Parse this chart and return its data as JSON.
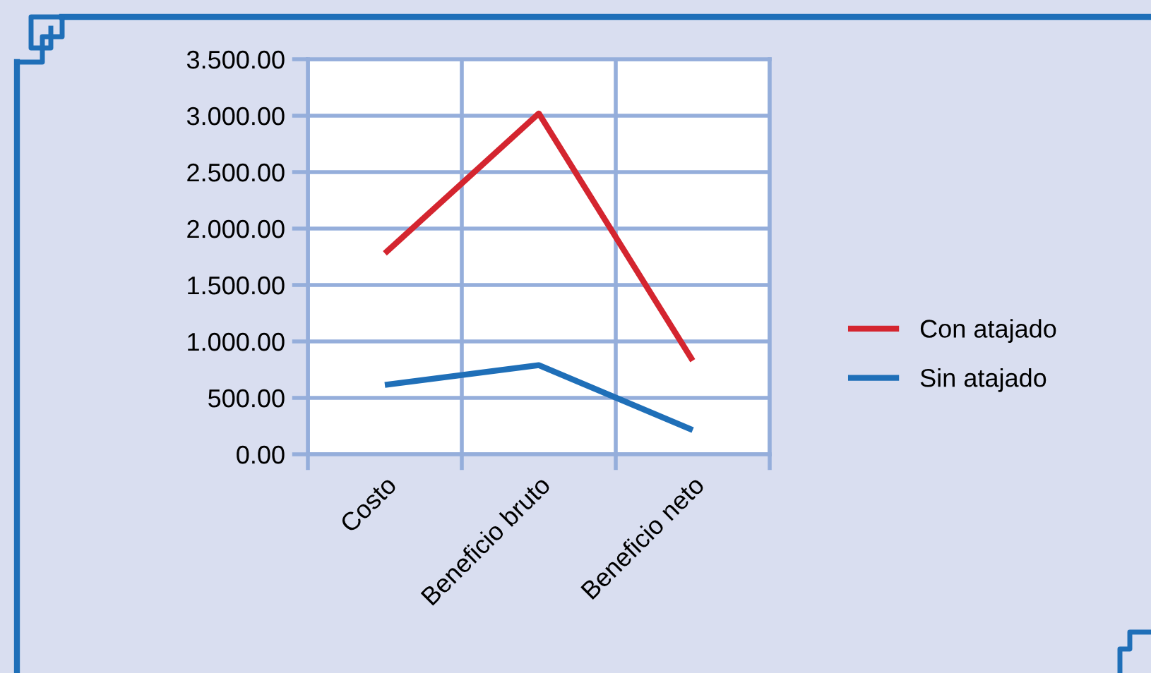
{
  "chart_data": {
    "type": "line",
    "categories": [
      "Costo",
      "Beneficio bruto",
      "Beneficio neto"
    ],
    "series": [
      {
        "name": "Con atajado",
        "color": "#d4252f",
        "values": [
          1780,
          3020,
          830
        ]
      },
      {
        "name": "Sin atajado",
        "color": "#1f6fb8",
        "values": [
          615,
          790,
          215
        ]
      }
    ],
    "ylim": [
      0,
      3500
    ],
    "yticks": [
      {
        "value": 0,
        "label": "0.00"
      },
      {
        "value": 500,
        "label": "500.00"
      },
      {
        "value": 1000,
        "label": "1.000.00"
      },
      {
        "value": 1500,
        "label": "1.500.00"
      },
      {
        "value": 2000,
        "label": "2.000.00"
      },
      {
        "value": 2500,
        "label": "2.500.00"
      },
      {
        "value": 3000,
        "label": "3.000.00"
      },
      {
        "value": 3500,
        "label": "3.500.00"
      }
    ],
    "grid": true,
    "legend": "right",
    "marker": "none",
    "line_style": "solid"
  }
}
